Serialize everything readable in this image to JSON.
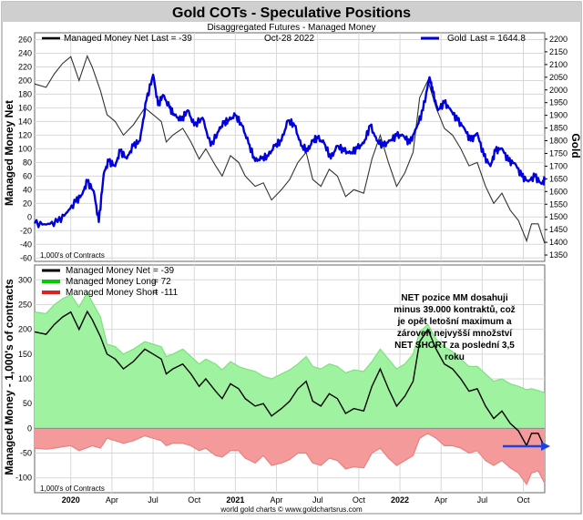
{
  "title": "Gold COTs - Speculative Positions",
  "subtitle": "Disaggregated Futures - Managed Money",
  "footer": "world gold charts © www.goldchartsrus.com",
  "colors": {
    "gold": "#0000dd",
    "net": "#000000",
    "long": "#00cc00",
    "short": "#dd2222",
    "longFill": "#9ff29f",
    "shortFill": "#f59a9a",
    "grid": "#d8d8d8",
    "arrow": "#1a44dd",
    "titleBg": "#cfcfcf"
  },
  "chart_data": [
    {
      "type": "line",
      "name": "top-panel",
      "legend_left": "Managed Money Net",
      "legend_left_value": "Last = -39",
      "legend_date": "Oct-28  2022",
      "legend_right": "Gold",
      "legend_right_value": "Last = 1644.8",
      "ylabel_left": "Managed Money Net",
      "ylabel_right": "Gold",
      "units_note": "1,000's of Contracts",
      "ylim_left": [
        -65,
        270
      ],
      "ylim_right": [
        1325,
        2225
      ],
      "yticks_left": [
        -60,
        -40,
        -20,
        0,
        20,
        40,
        60,
        80,
        100,
        120,
        140,
        160,
        180,
        200,
        220,
        240,
        260
      ],
      "yticks_right": [
        1350,
        1400,
        1450,
        1500,
        1550,
        1600,
        1650,
        1700,
        1750,
        1800,
        1850,
        1900,
        1950,
        2000,
        2050,
        2100,
        2150,
        2200
      ],
      "x_range": [
        2019.78,
        2022.88
      ],
      "series": [
        {
          "name": "Managed Money Net",
          "x": [
            2019.78,
            2019.85,
            2019.9,
            2019.95,
            2020.0,
            2020.05,
            2020.1,
            2020.13,
            2020.18,
            2020.22,
            2020.27,
            2020.32,
            2020.38,
            2020.45,
            2020.5,
            2020.55,
            2020.58,
            2020.62,
            2020.68,
            2020.73,
            2020.78,
            2020.82,
            2020.88,
            2020.92,
            2020.97,
            2021.02,
            2021.06,
            2021.12,
            2021.17,
            2021.22,
            2021.28,
            2021.33,
            2021.38,
            2021.43,
            2021.47,
            2021.52,
            2021.57,
            2021.62,
            2021.67,
            2021.72,
            2021.78,
            2021.83,
            2021.88,
            2021.93,
            2021.98,
            2022.03,
            2022.08,
            2022.12,
            2022.17,
            2022.22,
            2022.27,
            2022.32,
            2022.37,
            2022.42,
            2022.47,
            2022.52,
            2022.57,
            2022.62,
            2022.67,
            2022.72,
            2022.77,
            2022.8,
            2022.84,
            2022.88
          ],
          "values": [
            195,
            190,
            210,
            225,
            235,
            200,
            236,
            220,
            185,
            150,
            140,
            120,
            135,
            160,
            150,
            140,
            110,
            120,
            130,
            110,
            85,
            100,
            75,
            60,
            90,
            80,
            60,
            45,
            50,
            25,
            40,
            55,
            80,
            95,
            55,
            45,
            70,
            60,
            30,
            40,
            35,
            85,
            120,
            80,
            45,
            65,
            95,
            175,
            200,
            160,
            130,
            120,
            100,
            75,
            80,
            45,
            20,
            35,
            10,
            -5,
            -35,
            -10,
            -10,
            -39
          ]
        },
        {
          "name": "Gold",
          "x": [
            2019.78,
            2019.85,
            2019.92,
            2019.98,
            2020.03,
            2020.07,
            2020.1,
            2020.14,
            2020.17,
            2020.2,
            2020.23,
            2020.27,
            2020.3,
            2020.34,
            2020.38,
            2020.42,
            2020.46,
            2020.5,
            2020.53,
            2020.56,
            2020.6,
            2020.63,
            2020.67,
            2020.71,
            2020.75,
            2020.8,
            2020.85,
            2020.9,
            2020.93,
            2020.96,
            2021.0,
            2021.04,
            2021.08,
            2021.12,
            2021.16,
            2021.2,
            2021.24,
            2021.28,
            2021.32,
            2021.36,
            2021.4,
            2021.44,
            2021.47,
            2021.5,
            2021.54,
            2021.58,
            2021.62,
            2021.66,
            2021.7,
            2021.74,
            2021.78,
            2021.82,
            2021.86,
            2021.9,
            2021.94,
            2021.98,
            2022.02,
            2022.06,
            2022.1,
            2022.14,
            2022.18,
            2022.2,
            2022.23,
            2022.27,
            2022.31,
            2022.35,
            2022.39,
            2022.43,
            2022.47,
            2022.51,
            2022.55,
            2022.58,
            2022.62,
            2022.66,
            2022.7,
            2022.74,
            2022.78,
            2022.82,
            2022.86,
            2022.88
          ],
          "values": [
            1475,
            1470,
            1480,
            1520,
            1560,
            1590,
            1640,
            1600,
            1480,
            1670,
            1720,
            1700,
            1760,
            1730,
            1780,
            1800,
            1960,
            2060,
            1940,
            1980,
            1930,
            1900,
            1880,
            1920,
            1860,
            1890,
            1780,
            1840,
            1870,
            1880,
            1900,
            1860,
            1790,
            1720,
            1730,
            1740,
            1780,
            1800,
            1880,
            1860,
            1780,
            1760,
            1800,
            1810,
            1790,
            1730,
            1780,
            1760,
            1750,
            1770,
            1790,
            1860,
            1800,
            1780,
            1800,
            1820,
            1820,
            1790,
            1850,
            1920,
            2050,
            1990,
            1920,
            1950,
            1920,
            1880,
            1850,
            1800,
            1830,
            1740,
            1700,
            1760,
            1770,
            1720,
            1710,
            1660,
            1640,
            1660,
            1630,
            1645
          ]
        }
      ]
    },
    {
      "type": "area",
      "name": "bottom-panel",
      "legend": [
        {
          "label": "Managed Money Net",
          "value": "= -39"
        },
        {
          "label": "Managed Money Long",
          "value": "= 72"
        },
        {
          "label": "Managed Money Short",
          "value": "= -111"
        }
      ],
      "ylabel": "Managed Money - 1,000's of contracts",
      "units_note": "1,000's of Contracts",
      "ylim": [
        -130,
        330
      ],
      "yticks": [
        -100,
        -50,
        0,
        50,
        100,
        150,
        200,
        250,
        300
      ],
      "x_range": [
        2019.78,
        2022.88
      ],
      "annotation": [
        "NET pozice MM dosahuji",
        "minus 39.000 kontraktů, což",
        "je opět letošní maximum a",
        "zároveň nejvyšší množství",
        "NET SHORT za poslední 3,5",
        "roku"
      ],
      "series": [
        {
          "name": "Managed Money Long",
          "x": [
            2019.78,
            2019.85,
            2019.9,
            2019.95,
            2020.0,
            2020.05,
            2020.1,
            2020.13,
            2020.18,
            2020.22,
            2020.27,
            2020.32,
            2020.38,
            2020.45,
            2020.5,
            2020.55,
            2020.58,
            2020.62,
            2020.68,
            2020.73,
            2020.78,
            2020.82,
            2020.88,
            2020.92,
            2020.97,
            2021.02,
            2021.06,
            2021.12,
            2021.17,
            2021.22,
            2021.28,
            2021.33,
            2021.38,
            2021.43,
            2021.47,
            2021.52,
            2021.57,
            2021.62,
            2021.67,
            2021.72,
            2021.78,
            2021.83,
            2021.88,
            2021.93,
            2021.98,
            2022.03,
            2022.08,
            2022.12,
            2022.17,
            2022.22,
            2022.27,
            2022.32,
            2022.37,
            2022.42,
            2022.47,
            2022.52,
            2022.57,
            2022.62,
            2022.67,
            2022.72,
            2022.77,
            2022.8,
            2022.84,
            2022.88
          ],
          "values": [
            235,
            232,
            250,
            262,
            270,
            245,
            275,
            255,
            225,
            170,
            165,
            150,
            160,
            175,
            170,
            165,
            145,
            150,
            160,
            145,
            130,
            140,
            130,
            118,
            135,
            125,
            120,
            115,
            105,
            100,
            110,
            118,
            130,
            145,
            125,
            120,
            130,
            125,
            112,
            118,
            115,
            135,
            160,
            140,
            120,
            130,
            150,
            195,
            210,
            180,
            165,
            155,
            140,
            125,
            125,
            110,
            95,
            100,
            90,
            85,
            78,
            80,
            76,
            72
          ]
        },
        {
          "name": "Managed Money Short",
          "x": [
            2019.78,
            2019.85,
            2019.9,
            2019.95,
            2020.0,
            2020.05,
            2020.1,
            2020.13,
            2020.18,
            2020.22,
            2020.27,
            2020.32,
            2020.38,
            2020.45,
            2020.5,
            2020.55,
            2020.58,
            2020.62,
            2020.68,
            2020.73,
            2020.78,
            2020.82,
            2020.88,
            2020.92,
            2020.97,
            2021.02,
            2021.06,
            2021.12,
            2021.17,
            2021.22,
            2021.28,
            2021.33,
            2021.38,
            2021.43,
            2021.47,
            2021.52,
            2021.57,
            2021.62,
            2021.67,
            2021.72,
            2021.78,
            2021.83,
            2021.88,
            2021.93,
            2021.98,
            2022.03,
            2022.08,
            2022.12,
            2022.17,
            2022.22,
            2022.27,
            2022.32,
            2022.37,
            2022.42,
            2022.47,
            2022.52,
            2022.57,
            2022.62,
            2022.67,
            2022.72,
            2022.77,
            2022.8,
            2022.84,
            2022.88
          ],
          "values": [
            -40,
            -42,
            -40,
            -37,
            -35,
            -45,
            -39,
            -35,
            -40,
            -20,
            -25,
            -30,
            -25,
            -15,
            -20,
            -25,
            -35,
            -30,
            -30,
            -35,
            -45,
            -40,
            -55,
            -58,
            -45,
            -45,
            -60,
            -70,
            -55,
            -75,
            -70,
            -63,
            -50,
            -50,
            -70,
            -75,
            -60,
            -65,
            -82,
            -78,
            -80,
            -50,
            -40,
            -60,
            -75,
            -65,
            -55,
            -20,
            -10,
            -20,
            -35,
            -35,
            -40,
            -50,
            -45,
            -65,
            -75,
            -65,
            -80,
            -90,
            -113,
            -90,
            -86,
            -111
          ]
        },
        {
          "name": "Managed Money Net",
          "x": [
            2019.78,
            2019.85,
            2019.9,
            2019.95,
            2020.0,
            2020.05,
            2020.1,
            2020.13,
            2020.18,
            2020.22,
            2020.27,
            2020.32,
            2020.38,
            2020.45,
            2020.5,
            2020.55,
            2020.58,
            2020.62,
            2020.68,
            2020.73,
            2020.78,
            2020.82,
            2020.88,
            2020.92,
            2020.97,
            2021.02,
            2021.06,
            2021.12,
            2021.17,
            2021.22,
            2021.28,
            2021.33,
            2021.38,
            2021.43,
            2021.47,
            2021.52,
            2021.57,
            2021.62,
            2021.67,
            2021.72,
            2021.78,
            2021.83,
            2021.88,
            2021.93,
            2021.98,
            2022.03,
            2022.08,
            2022.12,
            2022.17,
            2022.22,
            2022.27,
            2022.32,
            2022.37,
            2022.42,
            2022.47,
            2022.52,
            2022.57,
            2022.62,
            2022.67,
            2022.72,
            2022.77,
            2022.8,
            2022.84,
            2022.88
          ],
          "values": [
            195,
            190,
            210,
            225,
            235,
            200,
            236,
            220,
            185,
            150,
            140,
            120,
            135,
            160,
            150,
            140,
            110,
            120,
            130,
            110,
            85,
            100,
            75,
            60,
            90,
            80,
            60,
            45,
            50,
            25,
            40,
            55,
            80,
            95,
            55,
            45,
            70,
            60,
            30,
            40,
            35,
            85,
            120,
            80,
            45,
            65,
            95,
            175,
            200,
            160,
            130,
            120,
            100,
            75,
            80,
            45,
            20,
            35,
            10,
            -5,
            -35,
            -10,
            -10,
            -39
          ]
        }
      ]
    }
  ],
  "x_axis": {
    "ticks": [
      {
        "label": "2020",
        "x": 2020.0,
        "bold": true
      },
      {
        "label": "Apr",
        "x": 2020.25,
        "bold": false
      },
      {
        "label": "Jul",
        "x": 2020.5,
        "bold": false
      },
      {
        "label": "Oct",
        "x": 2020.75,
        "bold": false
      },
      {
        "label": "2021",
        "x": 2021.0,
        "bold": true
      },
      {
        "label": "Apr",
        "x": 2021.25,
        "bold": false
      },
      {
        "label": "Jul",
        "x": 2021.5,
        "bold": false
      },
      {
        "label": "Oct",
        "x": 2021.75,
        "bold": false
      },
      {
        "label": "2022",
        "x": 2022.0,
        "bold": true
      },
      {
        "label": "Apr",
        "x": 2022.25,
        "bold": false
      },
      {
        "label": "Jul",
        "x": 2022.5,
        "bold": false
      },
      {
        "label": "Oct",
        "x": 2022.75,
        "bold": false
      }
    ]
  }
}
